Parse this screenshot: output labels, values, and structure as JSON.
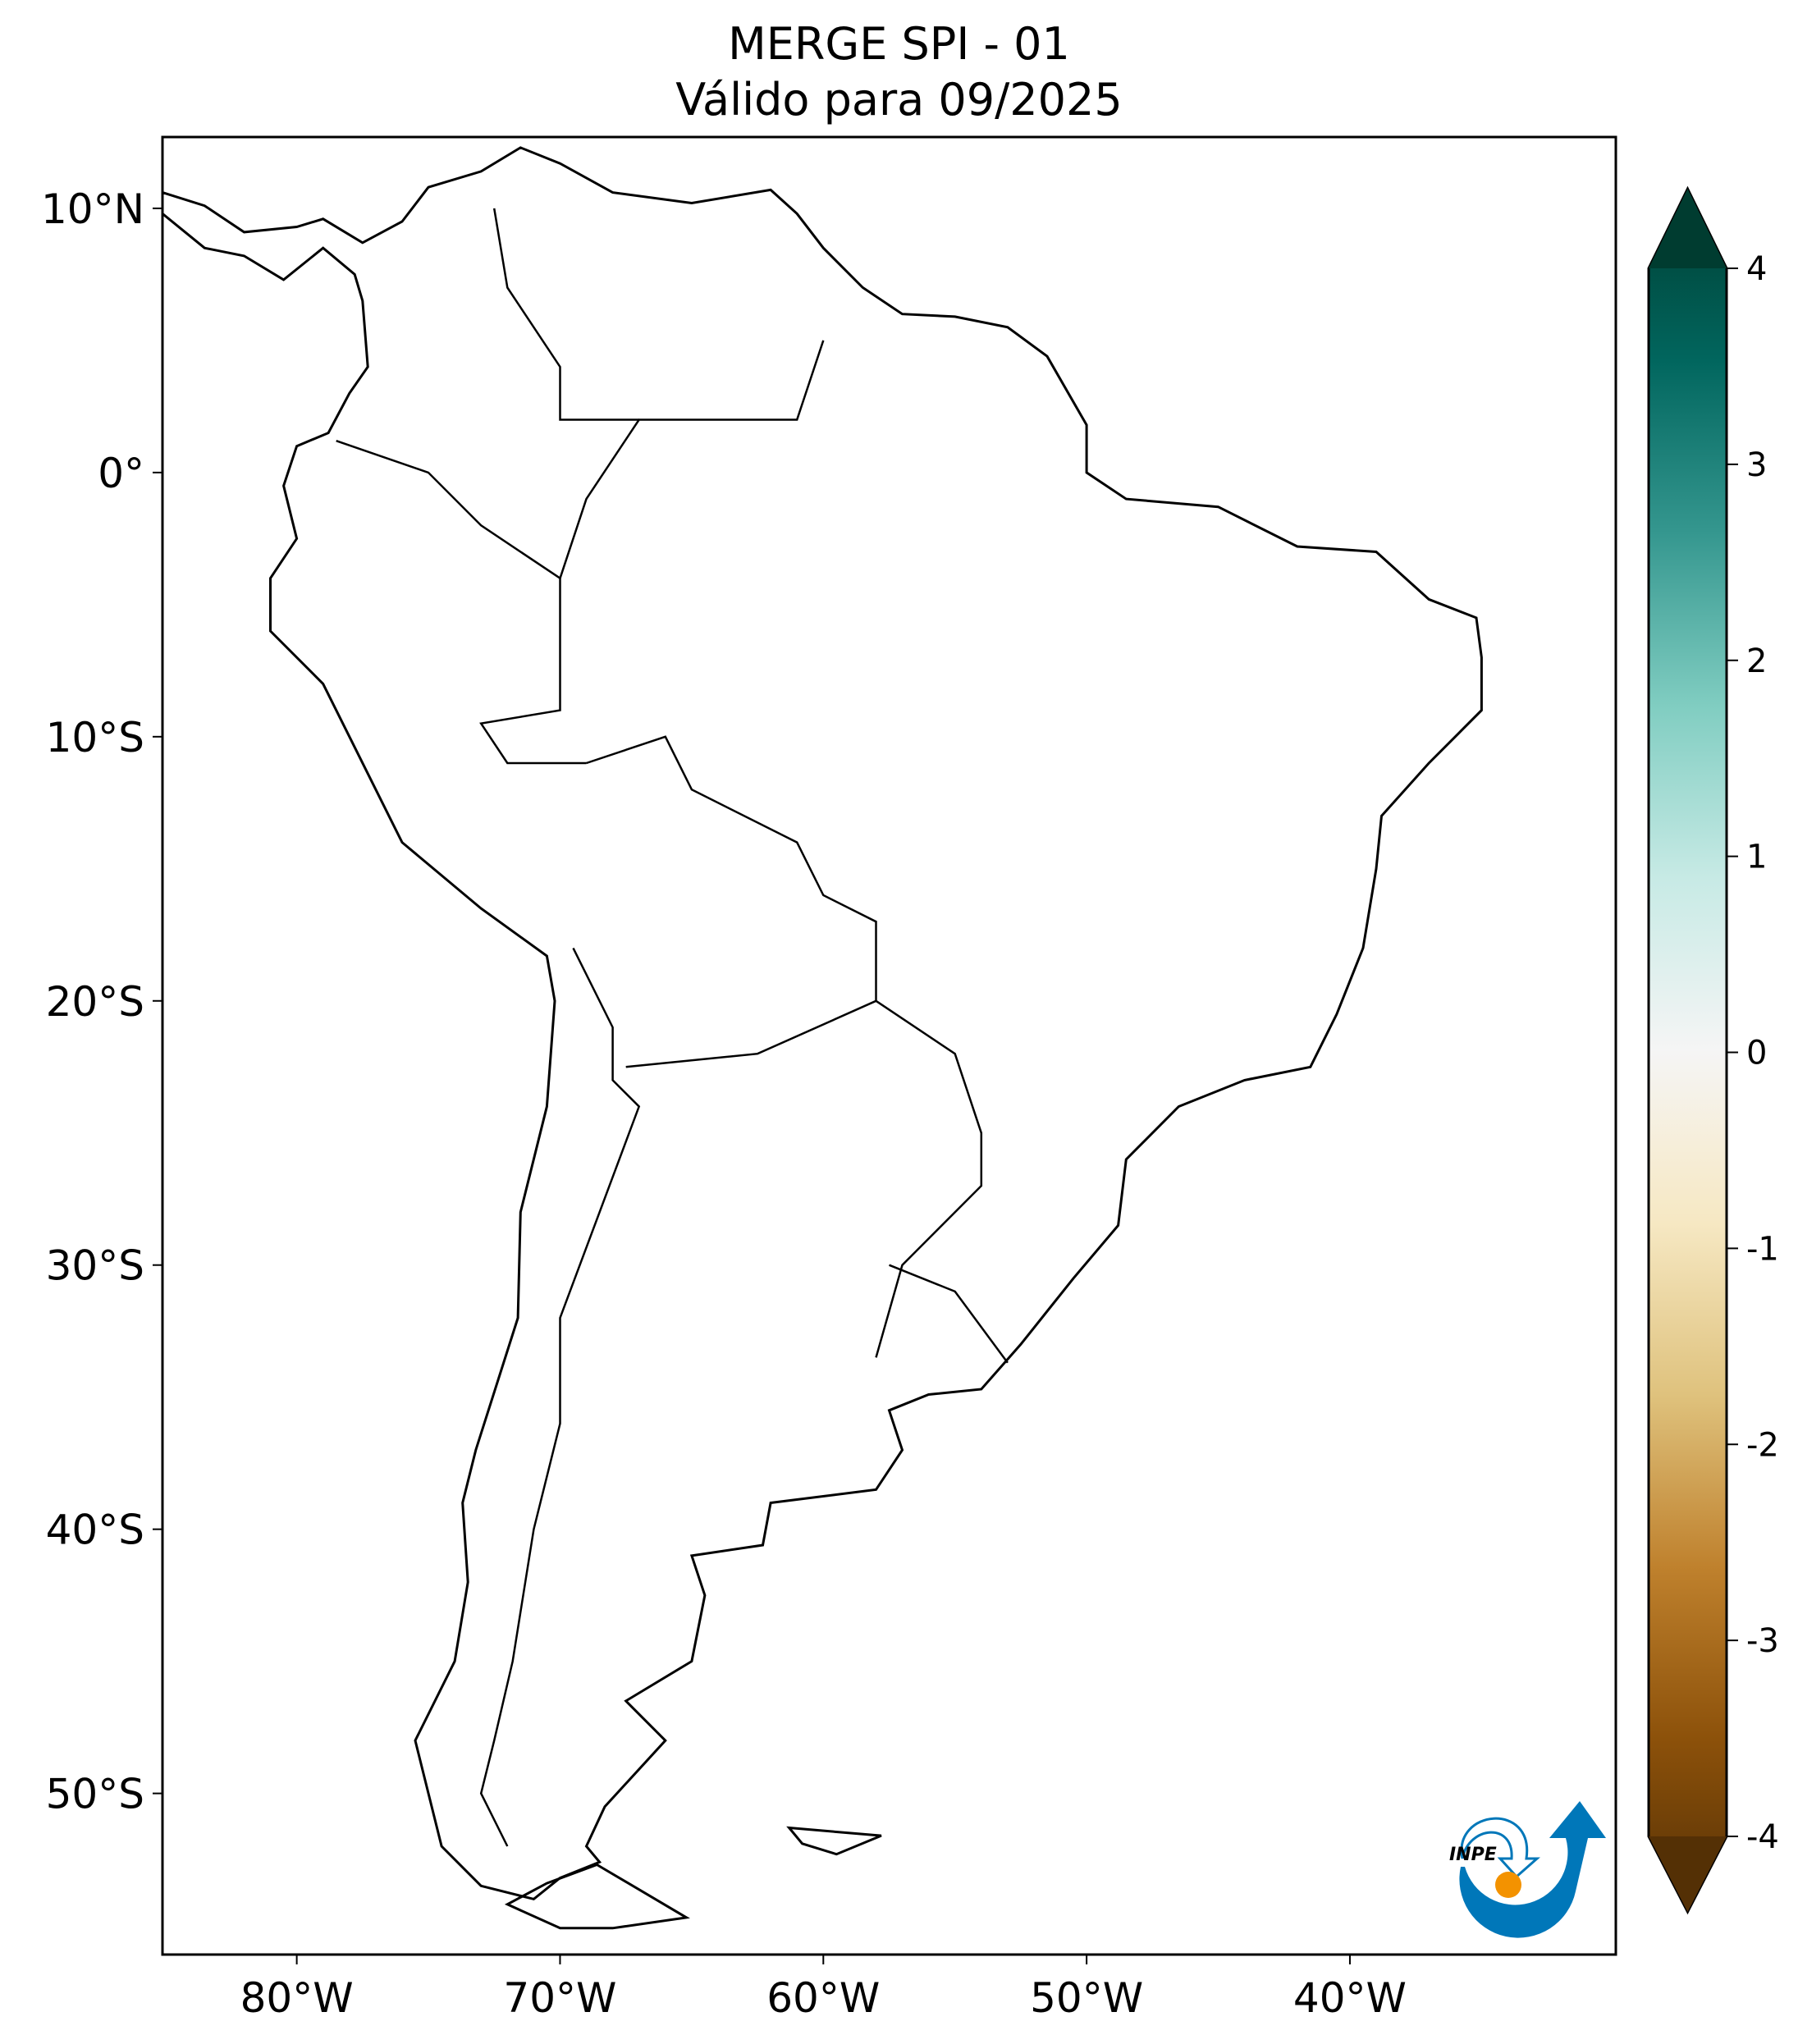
{
  "title": {
    "line1": "MERGE   SPI - 01",
    "line2": "Válido para 09/2025"
  },
  "map": {
    "projection": "equirectangular",
    "lon_range": [
      -85.1,
      -29.9
    ],
    "lat_range": [
      -56.1,
      12.7
    ],
    "lon_ticks": [
      {
        "value": -80,
        "label": "80°W"
      },
      {
        "value": -70,
        "label": "70°W"
      },
      {
        "value": -60,
        "label": "60°W"
      },
      {
        "value": -50,
        "label": "50°W"
      },
      {
        "value": -40,
        "label": "40°W"
      }
    ],
    "lat_ticks": [
      {
        "value": 10,
        "label": "10°N"
      },
      {
        "value": 0,
        "label": "0°"
      },
      {
        "value": -10,
        "label": "10°S"
      },
      {
        "value": -20,
        "label": "20°S"
      },
      {
        "value": -30,
        "label": "30°S"
      },
      {
        "value": -40,
        "label": "40°S"
      },
      {
        "value": -50,
        "label": "50°S"
      }
    ]
  },
  "colorbar": {
    "range": [
      -4,
      4
    ],
    "extend": "both",
    "colormap": "BrBG",
    "colors": [
      "#543005",
      "#8c510a",
      "#bf812d",
      "#dfc27d",
      "#f6e8c3",
      "#f5f5f5",
      "#c7eae5",
      "#80cdc1",
      "#35978f",
      "#01665e",
      "#003c30"
    ],
    "ticks": [
      "4",
      "3",
      "2",
      "1",
      "0",
      "-1",
      "-2",
      "-3",
      "-4"
    ]
  },
  "logo": {
    "text": "INPE",
    "blue": "#0077b9",
    "orange": "#f39200"
  }
}
